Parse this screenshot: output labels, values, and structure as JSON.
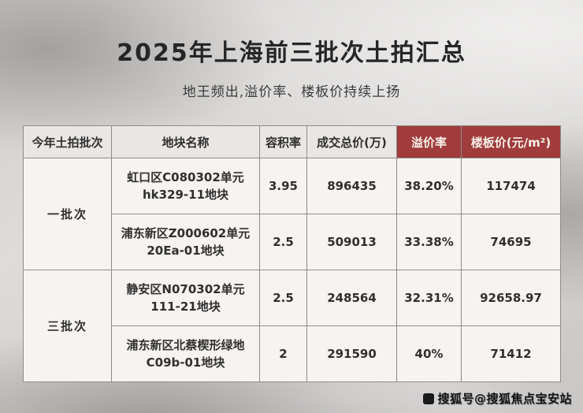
{
  "title": "2025年上海前三批次土拍汇总",
  "subtitle": "地王频出,溢价率、楼板价持续上扬",
  "chart_data": {
    "type": "table",
    "title": "2025年上海前三批次土拍汇总",
    "columns": [
      "今年土拍批次",
      "地块名称",
      "容积率",
      "成交总价(万)",
      "溢价率",
      "楼板价(元/m²)"
    ],
    "groups": [
      {
        "batch": "一批次",
        "rows": [
          {
            "plot": "虹口区C080302单元 hk329-11地块",
            "far": "3.95",
            "total_price": "896435",
            "premium_rate": "38.20%",
            "floor_price": "117474"
          },
          {
            "plot": "浦东新区Z000602单元 20Ea-01地块",
            "far": "2.5",
            "total_price": "509013",
            "premium_rate": "33.38%",
            "floor_price": "74695"
          }
        ]
      },
      {
        "batch": "三批次",
        "rows": [
          {
            "plot": "静安区N070302单元 111-21地块",
            "far": "2.5",
            "total_price": "248564",
            "premium_rate": "32.31%",
            "floor_price": "92658.97"
          },
          {
            "plot": "浦东新区北蔡楔形绿地 C09b-01地块",
            "far": "2",
            "total_price": "291590",
            "premium_rate": "40%",
            "floor_price": "71412"
          }
        ]
      }
    ]
  },
  "watermark": "搜狐号@搜狐焦点宝安站",
  "colors": {
    "red_header_bg": "#a03c3c",
    "red_value_text": "#b3302a",
    "header_bg": "#e9e6e3",
    "table_bg": "#f6f3f0"
  }
}
